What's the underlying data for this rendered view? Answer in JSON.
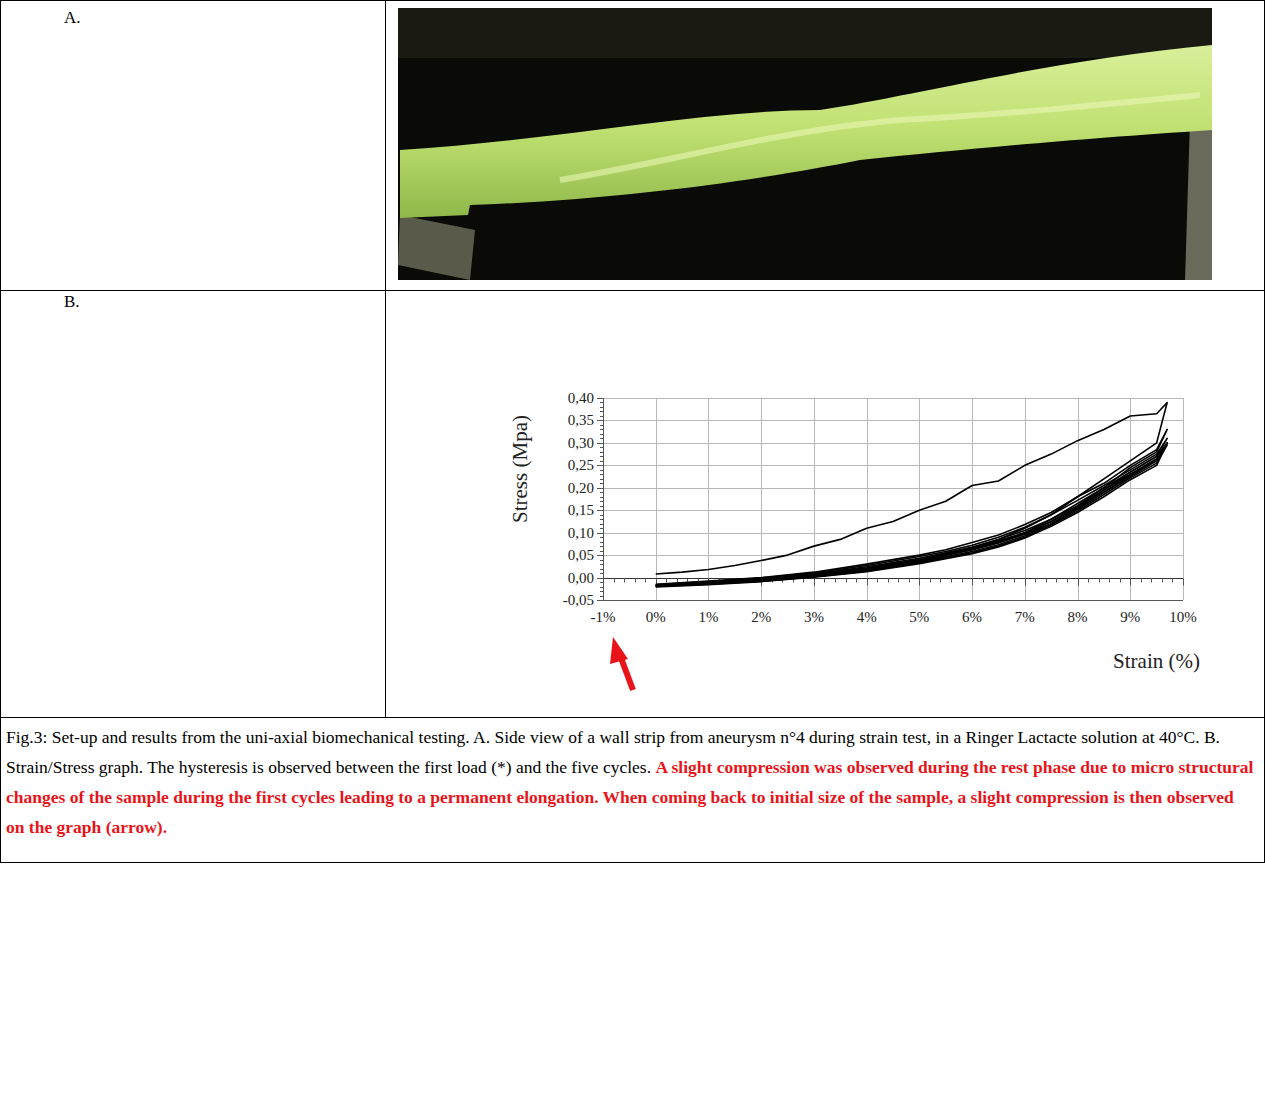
{
  "panels": [
    {
      "label": "A."
    },
    {
      "label": "B."
    }
  ],
  "chart_data": {
    "type": "line",
    "x_label": "Strain (%)",
    "y_label": "Stress (Mpa)",
    "xlim": [
      -1,
      10
    ],
    "ylim": [
      -0.05,
      0.4
    ],
    "xticks": [
      {
        "value": -1,
        "label": "-1%"
      },
      {
        "value": 0,
        "label": "0%"
      },
      {
        "value": 1,
        "label": "1%"
      },
      {
        "value": 2,
        "label": "2%"
      },
      {
        "value": 3,
        "label": "3%"
      },
      {
        "value": 4,
        "label": "4%"
      },
      {
        "value": 5,
        "label": "5%"
      },
      {
        "value": 6,
        "label": "6%"
      },
      {
        "value": 7,
        "label": "7%"
      },
      {
        "value": 8,
        "label": "8%"
      },
      {
        "value": 9,
        "label": "9%"
      },
      {
        "value": 10,
        "label": "10%"
      }
    ],
    "yticks": [
      {
        "value": -0.05,
        "label": "-0,05"
      },
      {
        "value": 0,
        "label": "0,00"
      },
      {
        "value": 0.05,
        "label": "0,05"
      },
      {
        "value": 0.1,
        "label": "0,10"
      },
      {
        "value": 0.15,
        "label": "0,15"
      },
      {
        "value": 0.2,
        "label": "0,20"
      },
      {
        "value": 0.25,
        "label": "0,25"
      },
      {
        "value": 0.3,
        "label": "0,30"
      },
      {
        "value": 0.35,
        "label": "0,35"
      },
      {
        "value": 0.4,
        "label": "0,40"
      }
    ],
    "grid": true,
    "color": "#000000",
    "line_style": "solid",
    "series": [
      {
        "x": [
          0,
          0.5,
          1,
          1.5,
          2,
          2.5,
          3,
          3.5,
          4,
          4.5,
          5,
          5.5,
          6,
          6.5,
          7,
          7.5,
          8,
          8.5,
          9,
          9.5,
          9.7,
          9.5,
          9,
          8.5,
          8,
          7.5,
          7,
          6.5,
          6,
          5.5,
          5,
          4,
          3,
          2,
          1,
          0
        ],
        "values": [
          0.008,
          0.012,
          0.018,
          0.027,
          0.038,
          0.05,
          0.07,
          0.085,
          0.11,
          0.125,
          0.15,
          0.17,
          0.205,
          0.215,
          0.25,
          0.275,
          0.305,
          0.33,
          0.36,
          0.365,
          0.39,
          0.3,
          0.26,
          0.22,
          0.18,
          0.14,
          0.11,
          0.085,
          0.065,
          0.05,
          0.035,
          0.015,
          0.002,
          -0.008,
          -0.013,
          -0.018
        ]
      },
      {
        "x": [
          0,
          1,
          2,
          3,
          4,
          5,
          5.5,
          6,
          6.5,
          7,
          7.5,
          8,
          8.5,
          9,
          9.5,
          9.7,
          9.5,
          9,
          8.5,
          8,
          7.5,
          7,
          6.5,
          6,
          5,
          4,
          3,
          2,
          1,
          0
        ],
        "values": [
          -0.015,
          -0.008,
          0.0,
          0.012,
          0.03,
          0.05,
          0.062,
          0.078,
          0.095,
          0.118,
          0.145,
          0.18,
          0.21,
          0.25,
          0.285,
          0.33,
          0.28,
          0.245,
          0.2,
          0.16,
          0.13,
          0.1,
          0.08,
          0.065,
          0.04,
          0.02,
          0.005,
          -0.005,
          -0.012,
          -0.017
        ]
      },
      {
        "x": [
          0,
          1,
          2,
          3,
          4,
          5,
          5.5,
          6,
          6.5,
          7,
          7.5,
          8,
          8.5,
          9,
          9.5,
          9.7,
          9.5,
          9,
          8.5,
          8,
          7.5,
          7,
          6.5,
          6,
          5,
          4,
          3,
          2,
          1,
          0
        ],
        "values": [
          -0.016,
          -0.009,
          -0.001,
          0.01,
          0.027,
          0.047,
          0.058,
          0.072,
          0.09,
          0.112,
          0.14,
          0.172,
          0.205,
          0.24,
          0.275,
          0.31,
          0.27,
          0.235,
          0.195,
          0.155,
          0.125,
          0.097,
          0.077,
          0.062,
          0.038,
          0.018,
          0.004,
          -0.006,
          -0.013,
          -0.018
        ]
      },
      {
        "x": [
          0,
          1,
          2,
          3,
          4,
          5,
          5.5,
          6,
          6.5,
          7,
          7.5,
          8,
          8.5,
          9,
          9.5,
          9.7,
          9.5,
          9,
          8.5,
          8,
          7.5,
          7,
          6.5,
          6,
          5,
          4,
          3,
          2,
          1,
          0
        ],
        "values": [
          -0.017,
          -0.01,
          -0.002,
          0.008,
          0.024,
          0.043,
          0.055,
          0.068,
          0.085,
          0.105,
          0.13,
          0.165,
          0.2,
          0.235,
          0.27,
          0.3,
          0.262,
          0.228,
          0.19,
          0.152,
          0.12,
          0.093,
          0.073,
          0.058,
          0.035,
          0.016,
          0.003,
          -0.007,
          -0.014,
          -0.019
        ]
      },
      {
        "x": [
          0,
          1,
          2,
          3,
          4,
          5,
          5.5,
          6,
          6.5,
          7,
          7.5,
          8,
          8.5,
          9,
          9.5,
          9.7,
          9.5,
          9,
          8.5,
          8,
          7.5,
          7,
          6.5,
          6,
          5,
          4,
          3,
          2,
          1,
          0
        ],
        "values": [
          -0.018,
          -0.011,
          -0.003,
          0.007,
          0.022,
          0.04,
          0.052,
          0.065,
          0.082,
          0.1,
          0.125,
          0.158,
          0.195,
          0.23,
          0.265,
          0.295,
          0.255,
          0.222,
          0.185,
          0.148,
          0.117,
          0.09,
          0.07,
          0.055,
          0.033,
          0.014,
          0.002,
          -0.008,
          -0.015,
          -0.02
        ]
      },
      {
        "x": [
          0,
          1,
          2,
          3,
          4,
          5,
          5.5,
          6,
          6.5,
          7,
          7.5,
          8,
          8.5,
          9,
          9.5,
          9.7,
          9.5,
          9,
          8.5,
          8,
          7.5,
          7,
          6.5,
          6,
          5,
          4,
          3,
          2,
          1,
          0
        ],
        "values": [
          -0.019,
          -0.012,
          -0.004,
          0.006,
          0.02,
          0.038,
          0.05,
          0.062,
          0.078,
          0.097,
          0.12,
          0.152,
          0.19,
          0.225,
          0.26,
          0.3,
          0.25,
          0.218,
          0.18,
          0.145,
          0.114,
          0.088,
          0.068,
          0.053,
          0.031,
          0.013,
          0.001,
          -0.009,
          -0.016,
          -0.021
        ]
      }
    ]
  },
  "caption": {
    "text": "Fig.3: Set-up and results from the uni-axial biomechanical testing. A. Side view of a wall strip from aneurysm n°4 during strain test, in a Ringer Lactacte solution at 40°C. B. Strain/Stress graph. The hysteresis is observed between the first load (*) and the five cycles.",
    "emphasis": "A slight compression was observed during the rest phase due to micro structural changes of the sample during the first cycles leading to a permanent elongation. When coming back to initial size of the sample, a slight compression is then observed on the graph (arrow)."
  }
}
